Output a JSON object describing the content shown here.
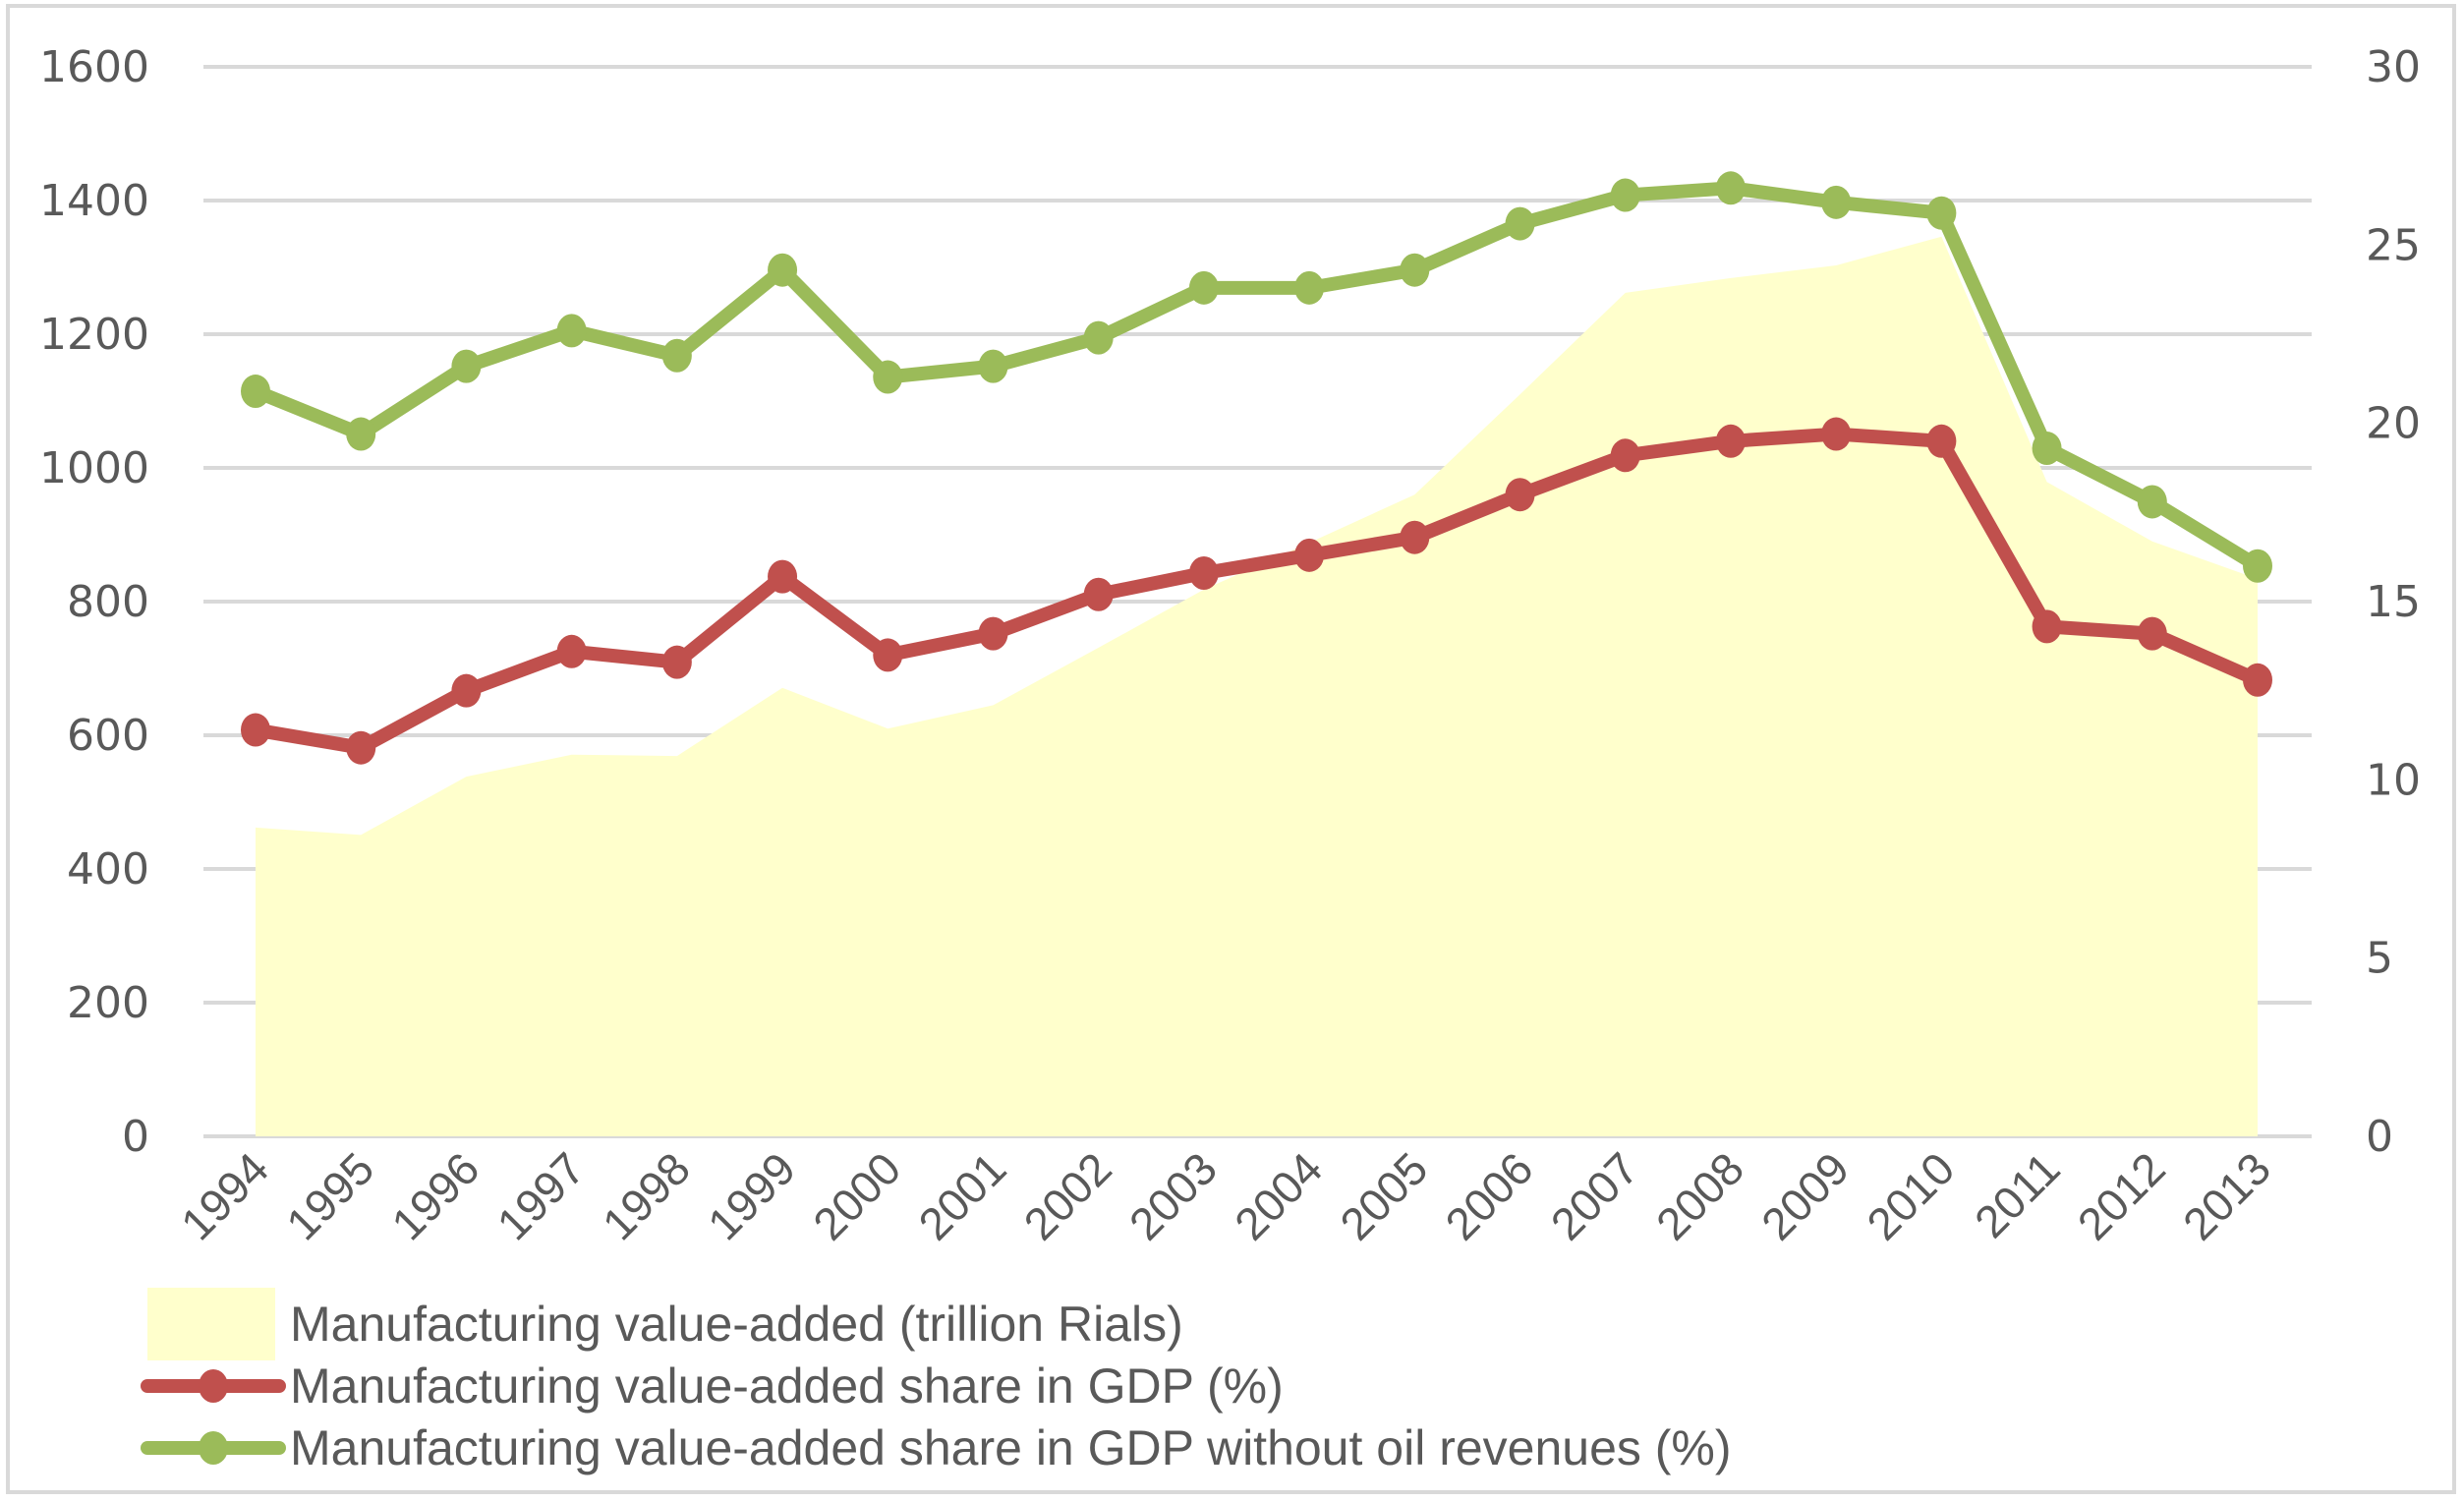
{
  "chart_data": {
    "type": "line",
    "title": "",
    "xlabel": "",
    "ylabel": "",
    "ylabel_right": "",
    "categories": [
      "1994",
      "1995",
      "1996",
      "1997",
      "1998",
      "1999",
      "2000",
      "2001",
      "2002",
      "2003",
      "2004",
      "2005",
      "2006",
      "2007",
      "2008",
      "2009",
      "2010",
      "2011",
      "2012",
      "2013"
    ],
    "y_left": {
      "range": [
        0,
        1600
      ],
      "ticks": [
        "0",
        "200",
        "400",
        "600",
        "800",
        "1000",
        "1200",
        "1400",
        "1600"
      ]
    },
    "y_right": {
      "range": [
        0,
        30
      ],
      "ticks": [
        "0",
        "5",
        "10",
        "15",
        "20",
        "25",
        "30"
      ]
    },
    "grid": true,
    "legend_position": "bottom",
    "series": [
      {
        "name": "Manufacturing value-added (trillion Rials)",
        "type": "area",
        "axis": "left",
        "color": "#FFFFCC",
        "values": [
          462,
          451,
          538,
          571,
          569,
          671,
          610,
          645,
          731,
          818,
          888,
          960,
          1110,
          1262,
          1284,
          1303,
          1346,
          979,
          890,
          834
        ]
      },
      {
        "name": "Manufacturing value-added share in GDP (%)",
        "type": "line",
        "axis": "right",
        "color": "#C0504D",
        "values": [
          11.4,
          10.9,
          12.5,
          13.6,
          13.3,
          15.7,
          13.5,
          14.1,
          15.2,
          15.8,
          16.3,
          16.8,
          18.0,
          19.1,
          19.5,
          19.7,
          19.5,
          14.3,
          14.1,
          12.8
        ]
      },
      {
        "name": "Manufacturing value-added share in GDP without oil revenues (%)",
        "type": "line",
        "axis": "right",
        "color": "#9BBB59",
        "values": [
          20.9,
          19.7,
          21.6,
          22.6,
          21.9,
          24.3,
          21.3,
          21.6,
          22.4,
          23.8,
          23.8,
          24.3,
          25.6,
          26.4,
          26.6,
          26.2,
          25.9,
          19.3,
          17.8,
          16.0
        ]
      }
    ]
  }
}
